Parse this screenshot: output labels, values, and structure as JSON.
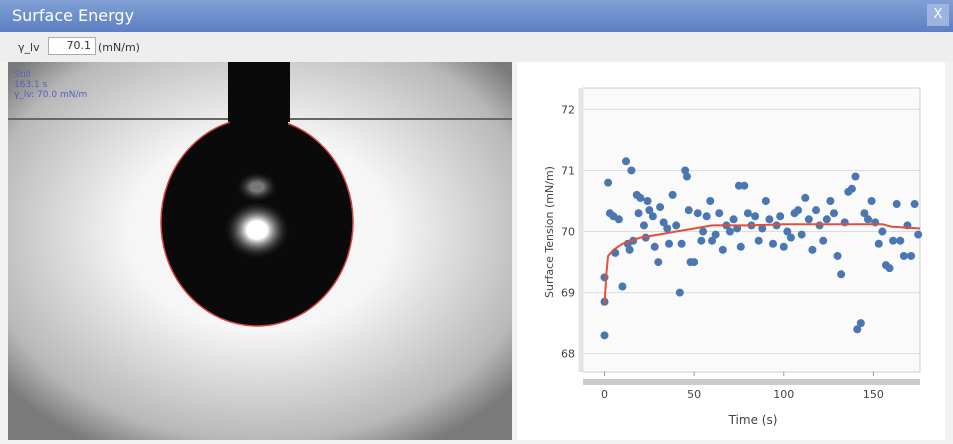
{
  "window": {
    "title": "Surface Energy",
    "close": "X"
  },
  "toolbar": {
    "label": "γ_lv",
    "value": "70.1",
    "unit": "(mN/m)"
  },
  "image": {
    "overlay": [
      "Still",
      "163.1 s",
      "γ_lv: 70.0 mN/m"
    ]
  },
  "chart_data": {
    "type": "scatter",
    "xlabel": "Time (s)",
    "ylabel": "Surface Tension (mN/m)",
    "xlim": [
      -12,
      176
    ],
    "ylim": [
      67.7,
      72.35
    ],
    "xticks": [
      0,
      50,
      100,
      150
    ],
    "yticks": [
      68,
      69,
      70,
      71,
      72
    ],
    "grid": true,
    "series": [
      {
        "type": "scatter",
        "color": "#4a76b2",
        "x": [
          0,
          0,
          0,
          2,
          3,
          5,
          6,
          8,
          10,
          12,
          13,
          14,
          15,
          16,
          18,
          19,
          20,
          22,
          23,
          24,
          25,
          27,
          28,
          30,
          31,
          33,
          35,
          36,
          38,
          40,
          42,
          43,
          45,
          46,
          47,
          48,
          50,
          52,
          54,
          55,
          57,
          59,
          60,
          62,
          64,
          66,
          68,
          70,
          72,
          74,
          75,
          76,
          78,
          80,
          82,
          84,
          86,
          88,
          90,
          92,
          94,
          96,
          98,
          100,
          102,
          104,
          106,
          108,
          110,
          112,
          114,
          116,
          118,
          120,
          122,
          124,
          126,
          128,
          130,
          132,
          134,
          136,
          138,
          140,
          141,
          143,
          145,
          147,
          149,
          151,
          153,
          155,
          157,
          159,
          161,
          163,
          165,
          167,
          169,
          171,
          173,
          175
        ],
        "values": [
          69.25,
          68.85,
          68.3,
          70.8,
          70.3,
          70.25,
          69.65,
          70.2,
          69.1,
          71.15,
          69.8,
          69.7,
          71.0,
          69.85,
          70.6,
          70.3,
          70.55,
          70.1,
          69.9,
          70.5,
          70.35,
          70.25,
          69.75,
          69.5,
          70.4,
          70.15,
          70.05,
          69.8,
          70.6,
          70.1,
          69.0,
          69.8,
          71.0,
          70.9,
          70.35,
          69.5,
          69.5,
          70.3,
          69.85,
          70.0,
          70.25,
          70.5,
          69.85,
          69.95,
          70.3,
          69.7,
          70.1,
          70.0,
          70.2,
          70.05,
          70.75,
          69.75,
          70.75,
          70.3,
          70.1,
          70.25,
          69.85,
          70.05,
          70.5,
          70.2,
          69.8,
          70.1,
          70.25,
          69.75,
          70.0,
          69.9,
          70.3,
          70.35,
          69.95,
          70.55,
          70.2,
          69.7,
          70.35,
          70.1,
          69.85,
          70.2,
          70.5,
          70.3,
          69.6,
          69.3,
          70.15,
          70.65,
          70.7,
          70.9,
          68.4,
          68.5,
          70.3,
          70.2,
          70.5,
          70.15,
          69.8,
          70.0,
          69.45,
          69.4,
          69.85,
          70.45,
          69.85,
          69.6,
          70.1,
          69.6,
          70.45,
          69.95
        ]
      },
      {
        "type": "line",
        "color": "#e0503c",
        "x": [
          0,
          1,
          2,
          5,
          10,
          20,
          30,
          40,
          50,
          60,
          80,
          100,
          140,
          155,
          160,
          176
        ],
        "values": [
          68.8,
          69.3,
          69.6,
          69.7,
          69.8,
          69.9,
          69.95,
          70.0,
          70.05,
          70.1,
          70.1,
          70.12,
          70.12,
          70.12,
          70.08,
          70.05
        ]
      }
    ]
  }
}
